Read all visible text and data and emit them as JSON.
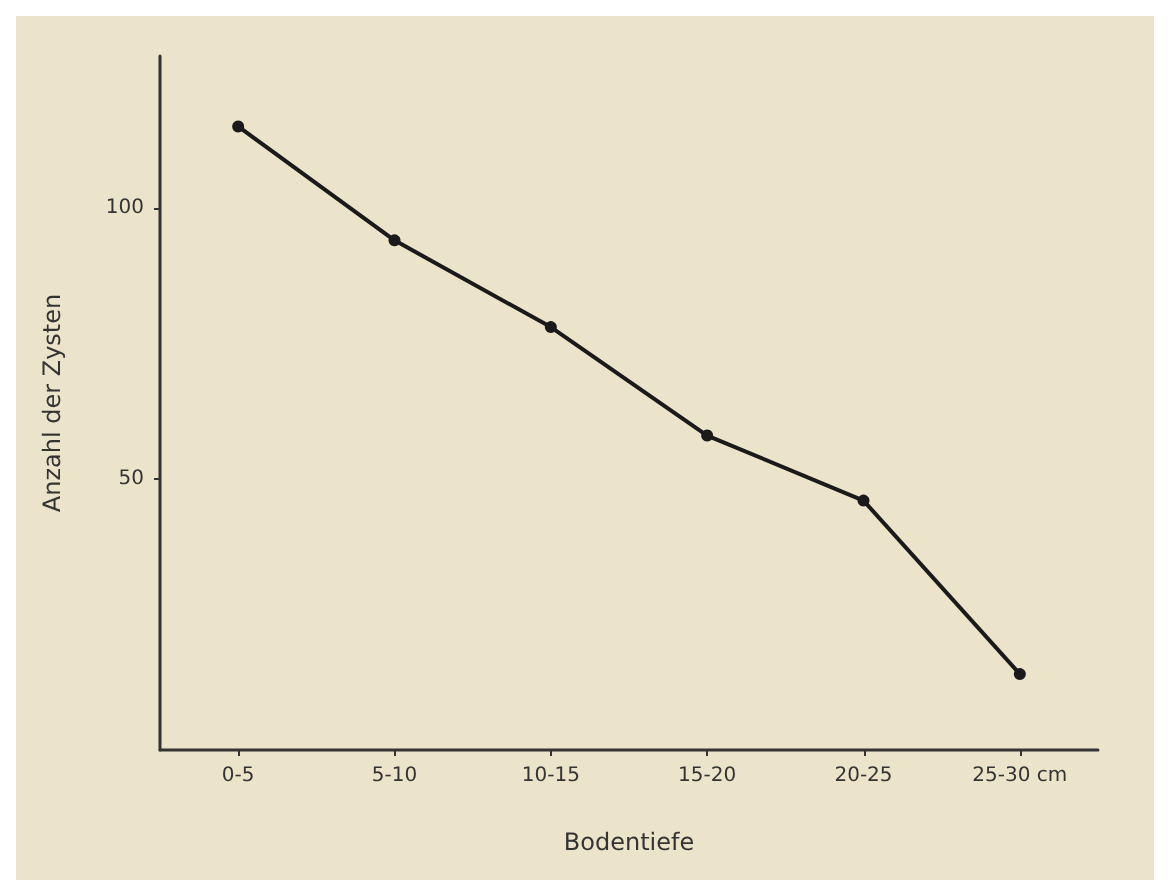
{
  "chart_data": {
    "type": "line",
    "xlabel": "Bodentiefe",
    "ylabel": "Anzahl der Zysten",
    "categories": [
      "0-5",
      "5-10",
      "10-15",
      "15-20",
      "20-25",
      "25-30 cm"
    ],
    "series": [
      {
        "color": "#1a1a1a",
        "values": [
          115,
          94,
          78,
          58,
          46,
          14
        ]
      }
    ],
    "ylim": [
      0,
      128
    ],
    "yticks": [
      50,
      100
    ],
    "grid": false,
    "marker": "circle",
    "line_style": "solid"
  }
}
